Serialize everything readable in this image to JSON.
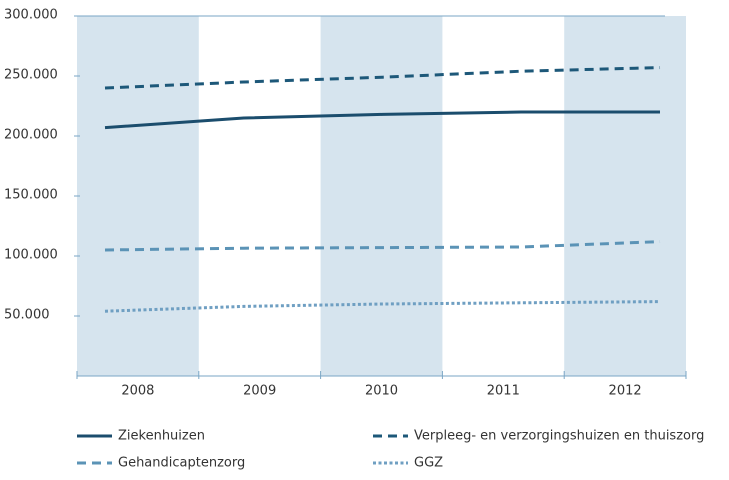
{
  "chart_data": {
    "type": "line",
    "categories": [
      "2008",
      "2009",
      "2010",
      "2011",
      "2012"
    ],
    "series": [
      {
        "name": "Ziekenhuizen",
        "color": "#1b4d6d",
        "dash": "solid",
        "values": [
          207000,
          215000,
          218000,
          220000,
          220000
        ]
      },
      {
        "name": "Verpleeg- en verzorgingshuizen en thuiszorg",
        "color": "#1d5879",
        "dash": "dashed",
        "values": [
          240000,
          245000,
          249000,
          254000,
          257000
        ]
      },
      {
        "name": "Gehandicaptenzorg",
        "color": "#5b93b6",
        "dash": "dashed",
        "values": [
          105000,
          106500,
          107000,
          107500,
          112000
        ]
      },
      {
        "name": "GGZ",
        "color": "#6f9fc2",
        "dash": "dotted",
        "values": [
          54000,
          58000,
          60000,
          61000,
          62000
        ]
      }
    ],
    "ylim": [
      0,
      300000
    ],
    "yticks": [
      {
        "value": 50000,
        "label": "50.000"
      },
      {
        "value": 100000,
        "label": "100.000"
      },
      {
        "value": 150000,
        "label": "150.000"
      },
      {
        "value": 200000,
        "label": "200.000"
      },
      {
        "value": 250000,
        "label": "250.000"
      },
      {
        "value": 300000,
        "label": "300.000"
      }
    ],
    "band_color": "#d6e4ee"
  }
}
